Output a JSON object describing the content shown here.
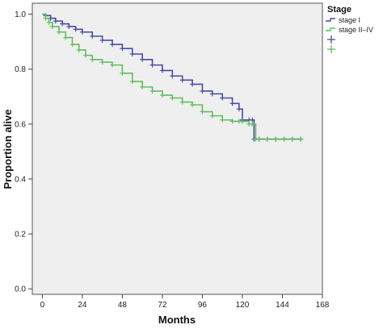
{
  "chart_data": {
    "type": "line",
    "title": "",
    "xlabel": "Months",
    "ylabel": "Proportion alive",
    "xlim": [
      -6,
      168
    ],
    "ylim": [
      -0.02,
      1.04
    ],
    "x_ticks": [
      0,
      24,
      48,
      72,
      96,
      120,
      144,
      168
    ],
    "x_tick_labels": [
      "0",
      "24",
      "48",
      "72",
      "96",
      "120",
      "144",
      "168"
    ],
    "y_ticks": [
      0.0,
      0.2,
      0.4,
      0.6,
      0.8,
      1.0
    ],
    "y_tick_labels": [
      "0.0",
      "0.2",
      "0.4",
      "0.6",
      "0.8",
      "1.0"
    ],
    "grid": false,
    "background": "#efefef",
    "legend": {
      "title": "Stage",
      "placement": "right",
      "entries": [
        {
          "label": "stage I",
          "marker": "line",
          "color": "#4a4aa8"
        },
        {
          "label": "stage II–IV",
          "marker": "line",
          "color": "#5fbf5f"
        },
        {
          "label": "",
          "marker": "plus",
          "color": "#4a4aa8"
        },
        {
          "label": "",
          "marker": "plus",
          "color": "#5fbf5f"
        }
      ]
    },
    "series": [
      {
        "name": "stage I",
        "color": "#4a4aa8",
        "x": [
          0,
          2,
          5,
          8,
          12,
          16,
          20,
          24,
          30,
          36,
          42,
          48,
          54,
          60,
          66,
          72,
          78,
          84,
          90,
          96,
          102,
          108,
          114,
          118,
          120,
          124,
          126,
          127,
          130,
          135,
          140,
          145,
          150,
          155
        ],
        "y": [
          1.0,
          0.995,
          0.985,
          0.975,
          0.965,
          0.955,
          0.945,
          0.935,
          0.92,
          0.905,
          0.89,
          0.875,
          0.855,
          0.835,
          0.815,
          0.795,
          0.775,
          0.76,
          0.745,
          0.72,
          0.71,
          0.695,
          0.675,
          0.655,
          0.615,
          0.615,
          0.615,
          0.545,
          0.545,
          0.545,
          0.545,
          0.545,
          0.545,
          0.545
        ]
      },
      {
        "name": "stage II–IV",
        "color": "#5fbf5f",
        "x": [
          0,
          2,
          4,
          6,
          10,
          14,
          18,
          22,
          26,
          30,
          36,
          42,
          48,
          54,
          60,
          66,
          72,
          78,
          84,
          90,
          96,
          102,
          108,
          114,
          118,
          120,
          124,
          126,
          128,
          130,
          135,
          140,
          145,
          150,
          155
        ],
        "y": [
          1.0,
          0.985,
          0.97,
          0.955,
          0.935,
          0.915,
          0.89,
          0.87,
          0.85,
          0.835,
          0.825,
          0.815,
          0.785,
          0.755,
          0.735,
          0.72,
          0.705,
          0.695,
          0.68,
          0.67,
          0.645,
          0.63,
          0.615,
          0.61,
          0.61,
          0.61,
          0.6,
          0.6,
          0.545,
          0.545,
          0.545,
          0.545,
          0.545,
          0.545,
          0.545
        ]
      }
    ]
  }
}
